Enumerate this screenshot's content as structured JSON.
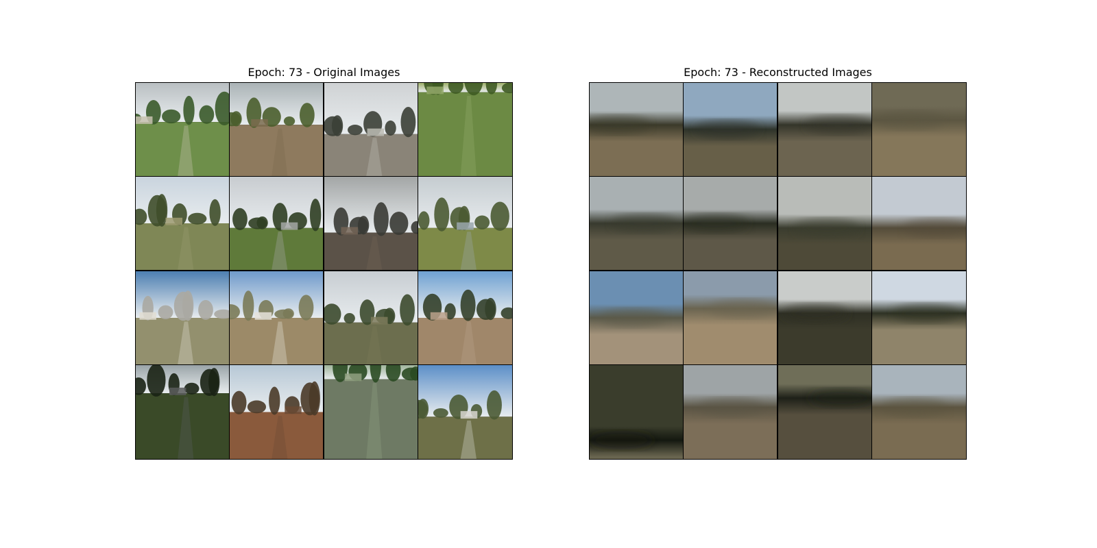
{
  "figure": {
    "left_panel": {
      "title": "Epoch: 73 - Original Images",
      "tiles": [
        {
          "name": "road-field-tile",
          "sky": "#b9bfc2",
          "ground": "#6e8f4a",
          "tree": "#3a5a2a",
          "horizon": 0.42,
          "accent": "#c8c2b0"
        },
        {
          "name": "tree-clearing-tile",
          "sky": "#aab3b6",
          "ground": "#8e7a5e",
          "tree": "#4a5e2c",
          "horizon": 0.45,
          "accent": "#7a6b4e"
        },
        {
          "name": "house-driveway-tile",
          "sky": "#cfd2d4",
          "ground": "#8a8478",
          "tree": "#3b3f36",
          "horizon": 0.55,
          "accent": "#bcbcb4"
        },
        {
          "name": "dense-shrubs-tile",
          "sky": "#9fb06a",
          "ground": "#6c8a44",
          "tree": "#3e5a22",
          "horizon": 0.1,
          "accent": "#93a86a"
        },
        {
          "name": "cloudy-pines-tile",
          "sky": "#c9d4de",
          "ground": "#7f8756",
          "tree": "#3f4e2a",
          "horizon": 0.5,
          "accent": "#9c9a70"
        },
        {
          "name": "tree-guardrail-tile",
          "sky": "#c8ccd0",
          "ground": "#5f7a3a",
          "tree": "#2f3e22",
          "horizon": 0.55,
          "accent": "#a5a7a5"
        },
        {
          "name": "dark-trees-road-tile",
          "sky": "#a3a6a6",
          "ground": "#5b5248",
          "tree": "#383a34",
          "horizon": 0.6,
          "accent": "#736456"
        },
        {
          "name": "lake-field-tile",
          "sky": "#c5ccd0",
          "ground": "#7e8a48",
          "tree": "#4a5a32",
          "horizon": 0.55,
          "accent": "#9aa7ad"
        },
        {
          "name": "townhouses-tile",
          "sky": "#4d7fb2",
          "ground": "#93906e",
          "tree": "#aaa9a2",
          "horizon": 0.5,
          "accent": "#e0ddd2"
        },
        {
          "name": "house-yard-tile",
          "sky": "#6f9acb",
          "ground": "#9c8a68",
          "tree": "#7a7a58",
          "horizon": 0.5,
          "accent": "#e5e2da"
        },
        {
          "name": "overcast-field-tile",
          "sky": "#c7cdd2",
          "ground": "#6c6e4e",
          "tree": "#3c4a2e",
          "horizon": 0.55,
          "accent": "#7c7a5a"
        },
        {
          "name": "dry-field-tile",
          "sky": "#6fa1d2",
          "ground": "#a0876a",
          "tree": "#34402a",
          "horizon": 0.5,
          "accent": "#b8a08a"
        },
        {
          "name": "dark-forest-road-tile",
          "sky": "#9aa4a8",
          "ground": "#3a4a28",
          "tree": "#1a2214",
          "horizon": 0.3,
          "accent": "#5a5c5c"
        },
        {
          "name": "pine-dirt-road-tile",
          "sky": "#b7c8d6",
          "ground": "#8a5a3c",
          "tree": "#4a3a28",
          "horizon": 0.5,
          "accent": "#6a4a34"
        },
        {
          "name": "green-canopy-tile",
          "sky": "#9fb49a",
          "ground": "#6e7a64",
          "tree": "#2a4a22",
          "horizon": 0.15,
          "accent": "#90a080"
        },
        {
          "name": "white-house-tile",
          "sky": "#5c8fc8",
          "ground": "#6e7048",
          "tree": "#4a5a34",
          "horizon": 0.55,
          "accent": "#d8d6d0"
        }
      ]
    },
    "right_panel": {
      "title": "Epoch: 73 - Reconstructed Images",
      "tiles": [
        {
          "name": "blurred-tile",
          "sky": "#aeb6b8",
          "ground": "#7c6e54",
          "tree": "#3b3a2a",
          "horizon": 0.45
        },
        {
          "name": "blurred-tile",
          "sky": "#8fa8bf",
          "ground": "#675f48",
          "tree": "#2e332a",
          "horizon": 0.5
        },
        {
          "name": "blurred-tile",
          "sky": "#c2c6c4",
          "ground": "#6c6450",
          "tree": "#34352a",
          "horizon": 0.45
        },
        {
          "name": "blurred-tile",
          "sky": "#6f6a55",
          "ground": "#85775a",
          "tree": "#5c5642",
          "horizon": 0.4
        },
        {
          "name": "blurred-tile",
          "sky": "#a9b0b2",
          "ground": "#5f5a48",
          "tree": "#383a2e",
          "horizon": 0.5
        },
        {
          "name": "blurred-tile",
          "sky": "#a7abaa",
          "ground": "#5e5848",
          "tree": "#2b2e22",
          "horizon": 0.5
        },
        {
          "name": "blurred-tile",
          "sky": "#b9bcb8",
          "ground": "#4e4a38",
          "tree": "#3a3c2e",
          "horizon": 0.55
        },
        {
          "name": "blurred-tile",
          "sky": "#c3cad2",
          "ground": "#7a6b50",
          "tree": "#544c3a",
          "horizon": 0.55
        },
        {
          "name": "blurred-tile",
          "sky": "#6b8fb2",
          "ground": "#a3927a",
          "tree": "#5b5a4a",
          "horizon": 0.5
        },
        {
          "name": "blurred-tile",
          "sky": "#8b9bab",
          "ground": "#a08c6e",
          "tree": "#6a6450",
          "horizon": 0.4
        },
        {
          "name": "blurred-tile",
          "sky": "#c9ccca",
          "ground": "#3c3b2c",
          "tree": "#2e2f24",
          "horizon": 0.45
        },
        {
          "name": "blurred-tile",
          "sky": "#cfd8e2",
          "ground": "#8f846a",
          "tree": "#2e3224",
          "horizon": 0.45
        },
        {
          "name": "blurred-tile",
          "sky": "#3a3d2c",
          "ground": "#6a6650",
          "tree": "#141810",
          "horizon": 0.8
        },
        {
          "name": "blurred-tile",
          "sky": "#9ea4a6",
          "ground": "#7c6e58",
          "tree": "#5a5444",
          "horizon": 0.45
        },
        {
          "name": "blurred-tile",
          "sky": "#6f6e58",
          "ground": "#564f3e",
          "tree": "#1e2018",
          "horizon": 0.35
        },
        {
          "name": "blurred-tile",
          "sky": "#a9b4bc",
          "ground": "#7a6c52",
          "tree": "#5c5440",
          "horizon": 0.45
        }
      ]
    }
  }
}
